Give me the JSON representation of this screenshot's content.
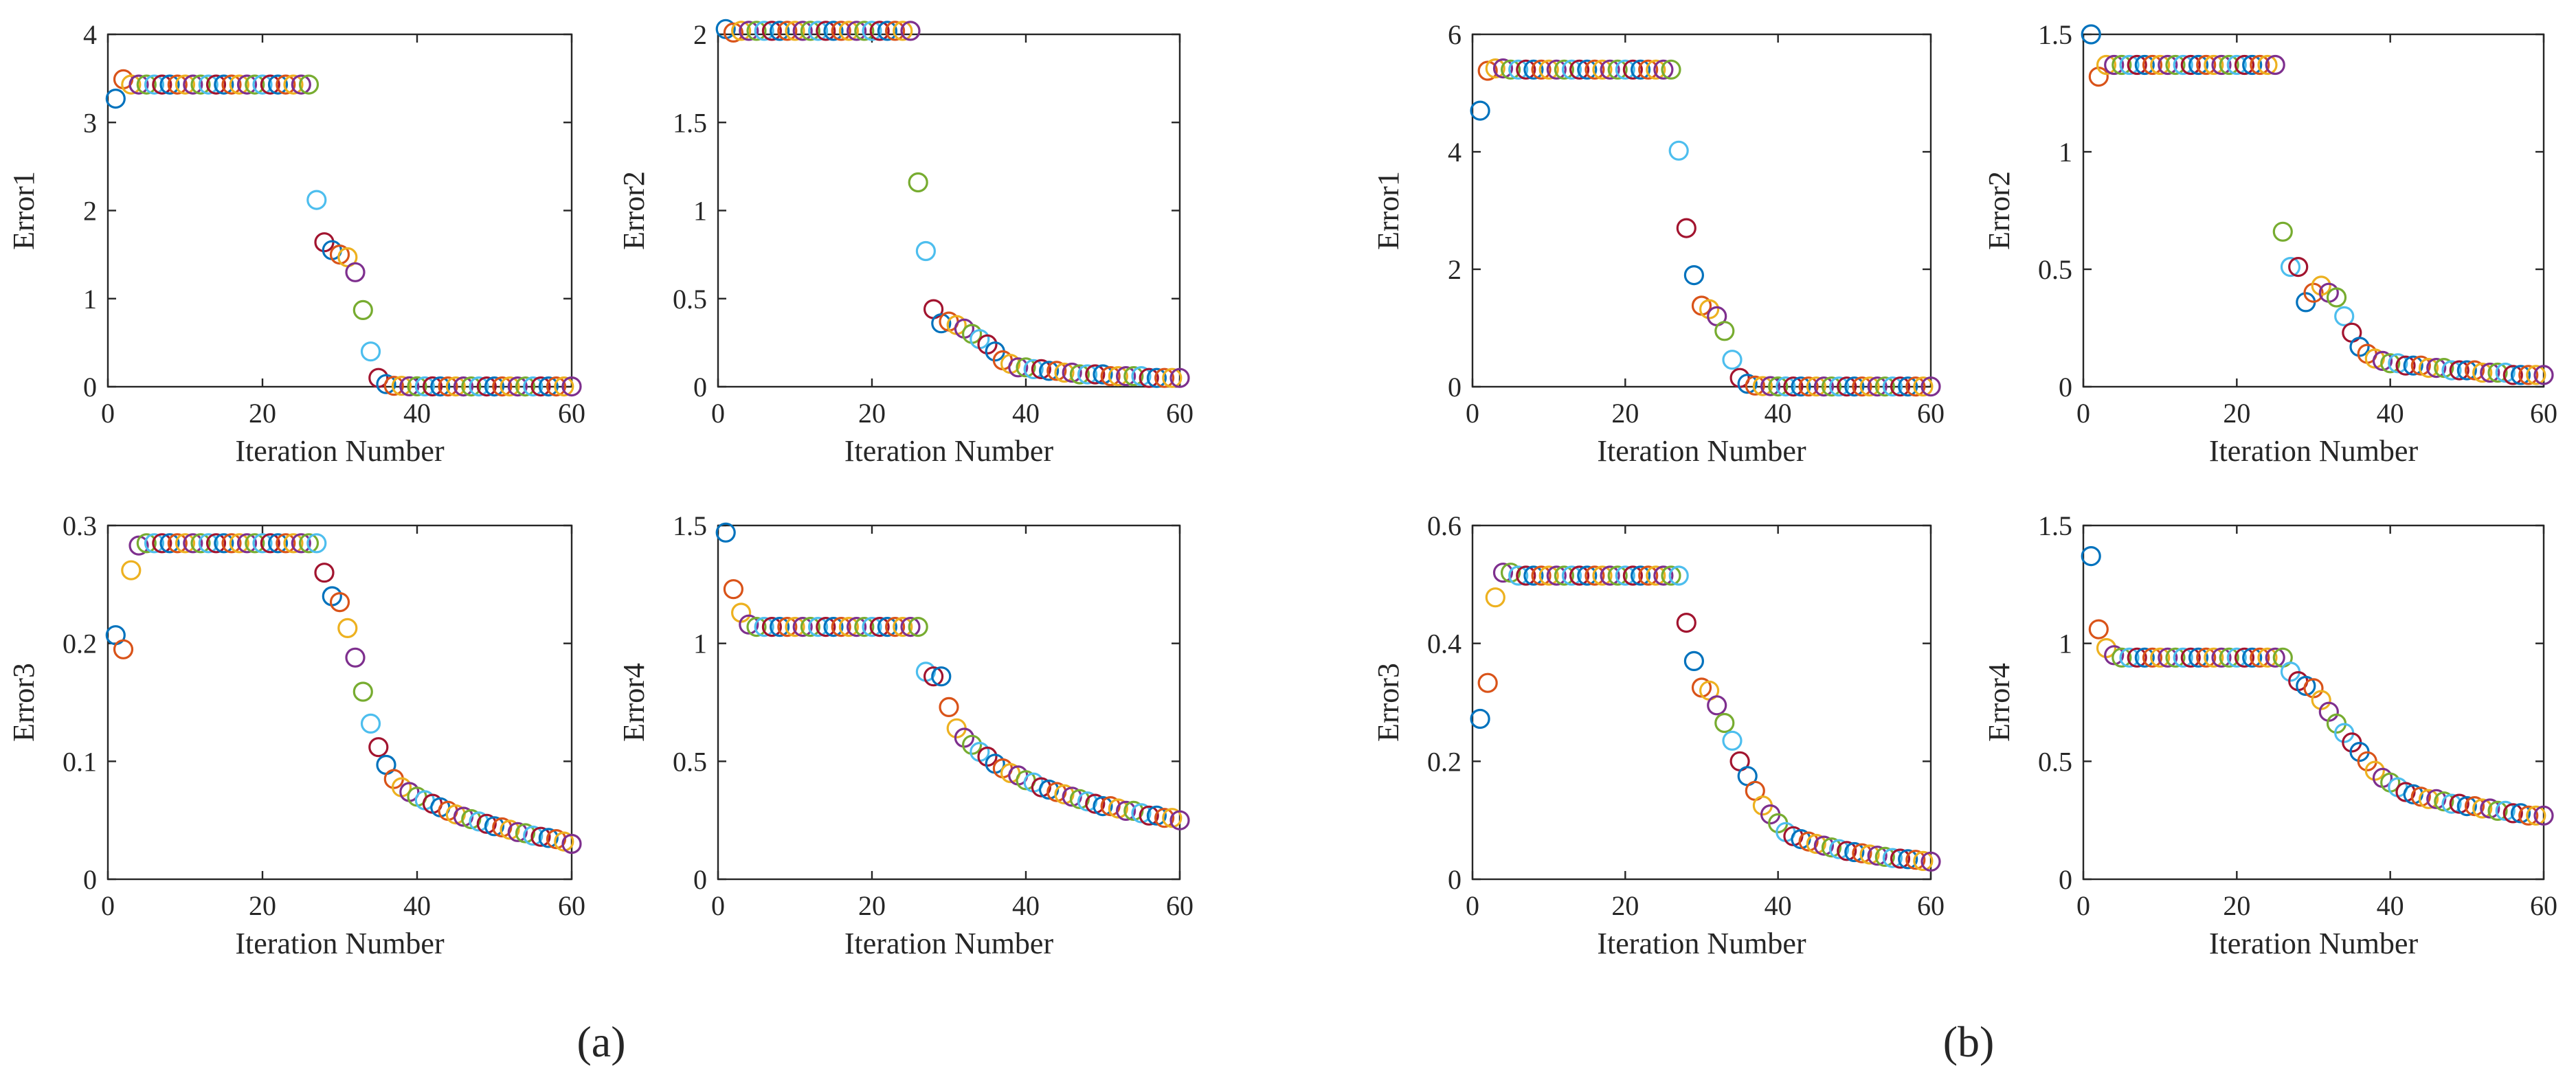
{
  "panel_labels": [
    "(a)",
    "(b)"
  ],
  "series_colors": [
    "#0072BD",
    "#D95319",
    "#EDB120",
    "#7E2F8E",
    "#77AC30",
    "#4DBEEE",
    "#A2142F"
  ],
  "chart_data": [
    {
      "type": "scatter",
      "panel": "(a)",
      "subplot": "top-left",
      "title": "",
      "xlabel": "Iteration Number",
      "ylabel": "Error1",
      "xlim": [
        0,
        60
      ],
      "ylim": [
        0,
        4
      ],
      "xticks": [
        0,
        20,
        40,
        60
      ],
      "yticks": [
        0,
        1,
        2,
        3,
        4
      ],
      "ytick_labels": [
        "0",
        "1",
        "2",
        "3",
        "4"
      ],
      "x": [
        1,
        2,
        3,
        4,
        5,
        6,
        7,
        8,
        9,
        10,
        11,
        12,
        13,
        14,
        15,
        16,
        17,
        18,
        19,
        20,
        21,
        22,
        23,
        24,
        25,
        26,
        27,
        28,
        29,
        30,
        31,
        32,
        33,
        34,
        35,
        36,
        37,
        38,
        39,
        40,
        41,
        42,
        43,
        44,
        45,
        46,
        47,
        48,
        49,
        50,
        51,
        52,
        53,
        54,
        55,
        56,
        57,
        58,
        59,
        60
      ],
      "y": [
        3.27,
        3.49,
        3.43,
        3.43,
        3.43,
        3.43,
        3.43,
        3.43,
        3.43,
        3.43,
        3.43,
        3.43,
        3.43,
        3.43,
        3.43,
        3.43,
        3.43,
        3.43,
        3.43,
        3.43,
        3.43,
        3.43,
        3.43,
        3.43,
        3.43,
        3.43,
        2.12,
        1.64,
        1.55,
        1.5,
        1.47,
        1.3,
        0.87,
        0.4,
        0.1,
        0.03,
        0.01,
        0.01,
        0.005,
        0.005,
        0.004,
        0.004,
        0.003,
        0.003,
        0.003,
        0.003,
        0.003,
        0.003,
        0.003,
        0.003,
        0.003,
        0.003,
        0.003,
        0.003,
        0.003,
        0.003,
        0.003,
        0.003,
        0.003,
        0.003
      ],
      "markers": "open-circle",
      "color_cycle": "by point index"
    },
    {
      "type": "scatter",
      "panel": "(a)",
      "subplot": "top-right",
      "title": "",
      "xlabel": "Iteration Number",
      "ylabel": "Error2",
      "xlim": [
        0,
        60
      ],
      "ylim": [
        0,
        2.0
      ],
      "xticks": [
        0,
        20,
        40,
        60
      ],
      "yticks": [
        0,
        0.5,
        1,
        1.5,
        2
      ],
      "ytick_labels": [
        "0",
        "0.5",
        "1",
        "1.5",
        "2"
      ],
      "x": [
        1,
        2,
        3,
        4,
        5,
        6,
        7,
        8,
        9,
        10,
        11,
        12,
        13,
        14,
        15,
        16,
        17,
        18,
        19,
        20,
        21,
        22,
        23,
        24,
        25,
        26,
        27,
        28,
        29,
        30,
        31,
        32,
        33,
        34,
        35,
        36,
        37,
        38,
        39,
        40,
        41,
        42,
        43,
        44,
        45,
        46,
        47,
        48,
        49,
        50,
        51,
        52,
        53,
        54,
        55,
        56,
        57,
        58,
        59,
        60
      ],
      "y": [
        2.03,
        2.01,
        2.02,
        2.02,
        2.02,
        2.02,
        2.02,
        2.02,
        2.02,
        2.02,
        2.02,
        2.02,
        2.02,
        2.02,
        2.02,
        2.02,
        2.02,
        2.02,
        2.02,
        2.02,
        2.02,
        2.02,
        2.02,
        2.02,
        2.02,
        1.16,
        0.77,
        0.44,
        0.36,
        0.37,
        0.35,
        0.33,
        0.3,
        0.27,
        0.24,
        0.2,
        0.15,
        0.13,
        0.11,
        0.11,
        0.1,
        0.1,
        0.09,
        0.09,
        0.08,
        0.08,
        0.07,
        0.07,
        0.07,
        0.07,
        0.06,
        0.06,
        0.06,
        0.06,
        0.06,
        0.05,
        0.05,
        0.05,
        0.05,
        0.05
      ],
      "markers": "open-circle",
      "color_cycle": "by point index"
    },
    {
      "type": "scatter",
      "panel": "(a)",
      "subplot": "bottom-left",
      "title": "",
      "xlabel": "Iteration Number",
      "ylabel": "Error3",
      "xlim": [
        0,
        60
      ],
      "ylim": [
        0,
        0.3
      ],
      "xticks": [
        0,
        20,
        40,
        60
      ],
      "yticks": [
        0,
        0.1,
        0.2,
        0.3
      ],
      "ytick_labels": [
        "0",
        "0.1",
        "0.2",
        "0.3"
      ],
      "x": [
        1,
        2,
        3,
        4,
        5,
        6,
        7,
        8,
        9,
        10,
        11,
        12,
        13,
        14,
        15,
        16,
        17,
        18,
        19,
        20,
        21,
        22,
        23,
        24,
        25,
        26,
        27,
        28,
        29,
        30,
        31,
        32,
        33,
        34,
        35,
        36,
        37,
        38,
        39,
        40,
        41,
        42,
        43,
        44,
        45,
        46,
        47,
        48,
        49,
        50,
        51,
        52,
        53,
        54,
        55,
        56,
        57,
        58,
        59,
        60
      ],
      "y": [
        0.207,
        0.195,
        0.262,
        0.283,
        0.285,
        0.285,
        0.285,
        0.285,
        0.285,
        0.285,
        0.285,
        0.285,
        0.285,
        0.285,
        0.285,
        0.285,
        0.285,
        0.285,
        0.285,
        0.285,
        0.285,
        0.285,
        0.285,
        0.285,
        0.285,
        0.285,
        0.285,
        0.26,
        0.24,
        0.235,
        0.213,
        0.188,
        0.159,
        0.132,
        0.112,
        0.097,
        0.085,
        0.078,
        0.074,
        0.07,
        0.067,
        0.064,
        0.061,
        0.058,
        0.055,
        0.053,
        0.051,
        0.049,
        0.047,
        0.045,
        0.044,
        0.042,
        0.04,
        0.039,
        0.037,
        0.036,
        0.035,
        0.034,
        0.032,
        0.03
      ],
      "markers": "open-circle",
      "color_cycle": "by point index"
    },
    {
      "type": "scatter",
      "panel": "(a)",
      "subplot": "bottom-right",
      "title": "",
      "xlabel": "Iteration Number",
      "ylabel": "Error4",
      "xlim": [
        0,
        60
      ],
      "ylim": [
        0,
        1.5
      ],
      "xticks": [
        0,
        20,
        40,
        60
      ],
      "yticks": [
        0,
        0.5,
        1,
        1.5
      ],
      "ytick_labels": [
        "0",
        "0.5",
        "1",
        "1.5"
      ],
      "x": [
        1,
        2,
        3,
        4,
        5,
        6,
        7,
        8,
        9,
        10,
        11,
        12,
        13,
        14,
        15,
        16,
        17,
        18,
        19,
        20,
        21,
        22,
        23,
        24,
        25,
        26,
        27,
        28,
        29,
        30,
        31,
        32,
        33,
        34,
        35,
        36,
        37,
        38,
        39,
        40,
        41,
        42,
        43,
        44,
        45,
        46,
        47,
        48,
        49,
        50,
        51,
        52,
        53,
        54,
        55,
        56,
        57,
        58,
        59,
        60
      ],
      "y": [
        1.47,
        1.23,
        1.13,
        1.08,
        1.07,
        1.07,
        1.07,
        1.07,
        1.07,
        1.07,
        1.07,
        1.07,
        1.07,
        1.07,
        1.07,
        1.07,
        1.07,
        1.07,
        1.07,
        1.07,
        1.07,
        1.07,
        1.07,
        1.07,
        1.07,
        1.07,
        0.88,
        0.86,
        0.86,
        0.73,
        0.64,
        0.6,
        0.57,
        0.54,
        0.52,
        0.49,
        0.47,
        0.45,
        0.44,
        0.42,
        0.41,
        0.39,
        0.38,
        0.37,
        0.36,
        0.35,
        0.34,
        0.33,
        0.32,
        0.31,
        0.31,
        0.3,
        0.29,
        0.29,
        0.28,
        0.27,
        0.27,
        0.26,
        0.26,
        0.25
      ],
      "markers": "open-circle",
      "color_cycle": "by point index"
    },
    {
      "type": "scatter",
      "panel": "(b)",
      "subplot": "top-left",
      "title": "",
      "xlabel": "Iteration Number",
      "ylabel": "Error1",
      "xlim": [
        0,
        60
      ],
      "ylim": [
        0,
        6
      ],
      "xticks": [
        0,
        20,
        40,
        60
      ],
      "yticks": [
        0,
        2,
        4,
        6
      ],
      "ytick_labels": [
        "0",
        "2",
        "4",
        "6"
      ],
      "x": [
        1,
        2,
        3,
        4,
        5,
        6,
        7,
        8,
        9,
        10,
        11,
        12,
        13,
        14,
        15,
        16,
        17,
        18,
        19,
        20,
        21,
        22,
        23,
        24,
        25,
        26,
        27,
        28,
        29,
        30,
        31,
        32,
        33,
        34,
        35,
        36,
        37,
        38,
        39,
        40,
        41,
        42,
        43,
        44,
        45,
        46,
        47,
        48,
        49,
        50,
        51,
        52,
        53,
        54,
        55,
        56,
        57,
        58,
        59,
        60
      ],
      "y": [
        4.7,
        5.38,
        5.42,
        5.42,
        5.4,
        5.4,
        5.4,
        5.4,
        5.4,
        5.4,
        5.4,
        5.4,
        5.4,
        5.4,
        5.4,
        5.4,
        5.4,
        5.4,
        5.4,
        5.4,
        5.4,
        5.4,
        5.4,
        5.4,
        5.4,
        5.4,
        4.02,
        2.7,
        1.9,
        1.38,
        1.32,
        1.2,
        0.95,
        0.46,
        0.15,
        0.05,
        0.02,
        0.01,
        0.01,
        0.005,
        0.005,
        0.004,
        0.004,
        0.003,
        0.003,
        0.003,
        0.003,
        0.003,
        0.003,
        0.003,
        0.003,
        0.003,
        0.003,
        0.003,
        0.003,
        0.003,
        0.003,
        0.003,
        0.003,
        0.003
      ],
      "markers": "open-circle",
      "color_cycle": "by point index"
    },
    {
      "type": "scatter",
      "panel": "(b)",
      "subplot": "top-right",
      "title": "",
      "xlabel": "Iteration Number",
      "ylabel": "Error2",
      "xlim": [
        0,
        60
      ],
      "ylim": [
        0,
        1.5
      ],
      "xticks": [
        0,
        20,
        40,
        60
      ],
      "yticks": [
        0,
        0.5,
        1,
        1.5
      ],
      "ytick_labels": [
        "0",
        "0.5",
        "1",
        "1.5"
      ],
      "x": [
        1,
        2,
        3,
        4,
        5,
        6,
        7,
        8,
        9,
        10,
        11,
        12,
        13,
        14,
        15,
        16,
        17,
        18,
        19,
        20,
        21,
        22,
        23,
        24,
        25,
        26,
        27,
        28,
        29,
        30,
        31,
        32,
        33,
        34,
        35,
        36,
        37,
        38,
        39,
        40,
        41,
        42,
        43,
        44,
        45,
        46,
        47,
        48,
        49,
        50,
        51,
        52,
        53,
        54,
        55,
        56,
        57,
        58,
        59,
        60
      ],
      "y": [
        1.5,
        1.32,
        1.37,
        1.37,
        1.37,
        1.37,
        1.37,
        1.37,
        1.37,
        1.37,
        1.37,
        1.37,
        1.37,
        1.37,
        1.37,
        1.37,
        1.37,
        1.37,
        1.37,
        1.37,
        1.37,
        1.37,
        1.37,
        1.37,
        1.37,
        0.66,
        0.51,
        0.51,
        0.36,
        0.4,
        0.43,
        0.4,
        0.38,
        0.3,
        0.23,
        0.17,
        0.14,
        0.12,
        0.11,
        0.1,
        0.1,
        0.09,
        0.09,
        0.09,
        0.08,
        0.08,
        0.08,
        0.07,
        0.07,
        0.07,
        0.07,
        0.06,
        0.06,
        0.06,
        0.06,
        0.05,
        0.05,
        0.05,
        0.05,
        0.05
      ],
      "markers": "open-circle",
      "color_cycle": "by point index"
    },
    {
      "type": "scatter",
      "panel": "(b)",
      "subplot": "bottom-left",
      "title": "",
      "xlabel": "Iteration Number",
      "ylabel": "Error3",
      "xlim": [
        0,
        60
      ],
      "ylim": [
        0,
        0.6
      ],
      "xticks": [
        0,
        20,
        40,
        60
      ],
      "yticks": [
        0,
        0.2,
        0.4,
        0.6
      ],
      "ytick_labels": [
        "0",
        "0.2",
        "0.4",
        "0.6"
      ],
      "x": [
        1,
        2,
        3,
        4,
        5,
        6,
        7,
        8,
        9,
        10,
        11,
        12,
        13,
        14,
        15,
        16,
        17,
        18,
        19,
        20,
        21,
        22,
        23,
        24,
        25,
        26,
        27,
        28,
        29,
        30,
        31,
        32,
        33,
        34,
        35,
        36,
        37,
        38,
        39,
        40,
        41,
        42,
        43,
        44,
        45,
        46,
        47,
        48,
        49,
        50,
        51,
        52,
        53,
        54,
        55,
        56,
        57,
        58,
        59,
        60
      ],
      "y": [
        0.272,
        0.333,
        0.478,
        0.52,
        0.52,
        0.515,
        0.515,
        0.515,
        0.515,
        0.515,
        0.515,
        0.515,
        0.515,
        0.515,
        0.515,
        0.515,
        0.515,
        0.515,
        0.515,
        0.515,
        0.515,
        0.515,
        0.515,
        0.515,
        0.515,
        0.515,
        0.515,
        0.435,
        0.37,
        0.325,
        0.32,
        0.295,
        0.265,
        0.235,
        0.2,
        0.175,
        0.15,
        0.125,
        0.11,
        0.095,
        0.08,
        0.073,
        0.068,
        0.064,
        0.06,
        0.057,
        0.054,
        0.051,
        0.048,
        0.046,
        0.044,
        0.042,
        0.04,
        0.038,
        0.036,
        0.035,
        0.034,
        0.033,
        0.031,
        0.03
      ],
      "markers": "open-circle",
      "color_cycle": "by point index"
    },
    {
      "type": "scatter",
      "panel": "(b)",
      "subplot": "bottom-right",
      "title": "",
      "xlabel": "Iteration Number",
      "ylabel": "Error4",
      "xlim": [
        0,
        60
      ],
      "ylim": [
        0,
        1.5
      ],
      "xticks": [
        0,
        20,
        40,
        60
      ],
      "yticks": [
        0,
        0.5,
        1,
        1.5
      ],
      "ytick_labels": [
        "0",
        "0.5",
        "1",
        "1.5"
      ],
      "x": [
        1,
        2,
        3,
        4,
        5,
        6,
        7,
        8,
        9,
        10,
        11,
        12,
        13,
        14,
        15,
        16,
        17,
        18,
        19,
        20,
        21,
        22,
        23,
        24,
        25,
        26,
        27,
        28,
        29,
        30,
        31,
        32,
        33,
        34,
        35,
        36,
        37,
        38,
        39,
        40,
        41,
        42,
        43,
        44,
        45,
        46,
        47,
        48,
        49,
        50,
        51,
        52,
        53,
        54,
        55,
        56,
        57,
        58,
        59,
        60
      ],
      "y": [
        1.37,
        1.06,
        0.98,
        0.95,
        0.94,
        0.94,
        0.94,
        0.94,
        0.94,
        0.94,
        0.94,
        0.94,
        0.94,
        0.94,
        0.94,
        0.94,
        0.94,
        0.94,
        0.94,
        0.94,
        0.94,
        0.94,
        0.94,
        0.94,
        0.94,
        0.94,
        0.88,
        0.84,
        0.82,
        0.81,
        0.76,
        0.71,
        0.66,
        0.62,
        0.58,
        0.54,
        0.5,
        0.46,
        0.43,
        0.41,
        0.39,
        0.37,
        0.36,
        0.35,
        0.34,
        0.34,
        0.33,
        0.32,
        0.32,
        0.31,
        0.31,
        0.3,
        0.3,
        0.29,
        0.29,
        0.28,
        0.28,
        0.27,
        0.27,
        0.27
      ],
      "markers": "open-circle",
      "color_cycle": "by point index"
    }
  ]
}
